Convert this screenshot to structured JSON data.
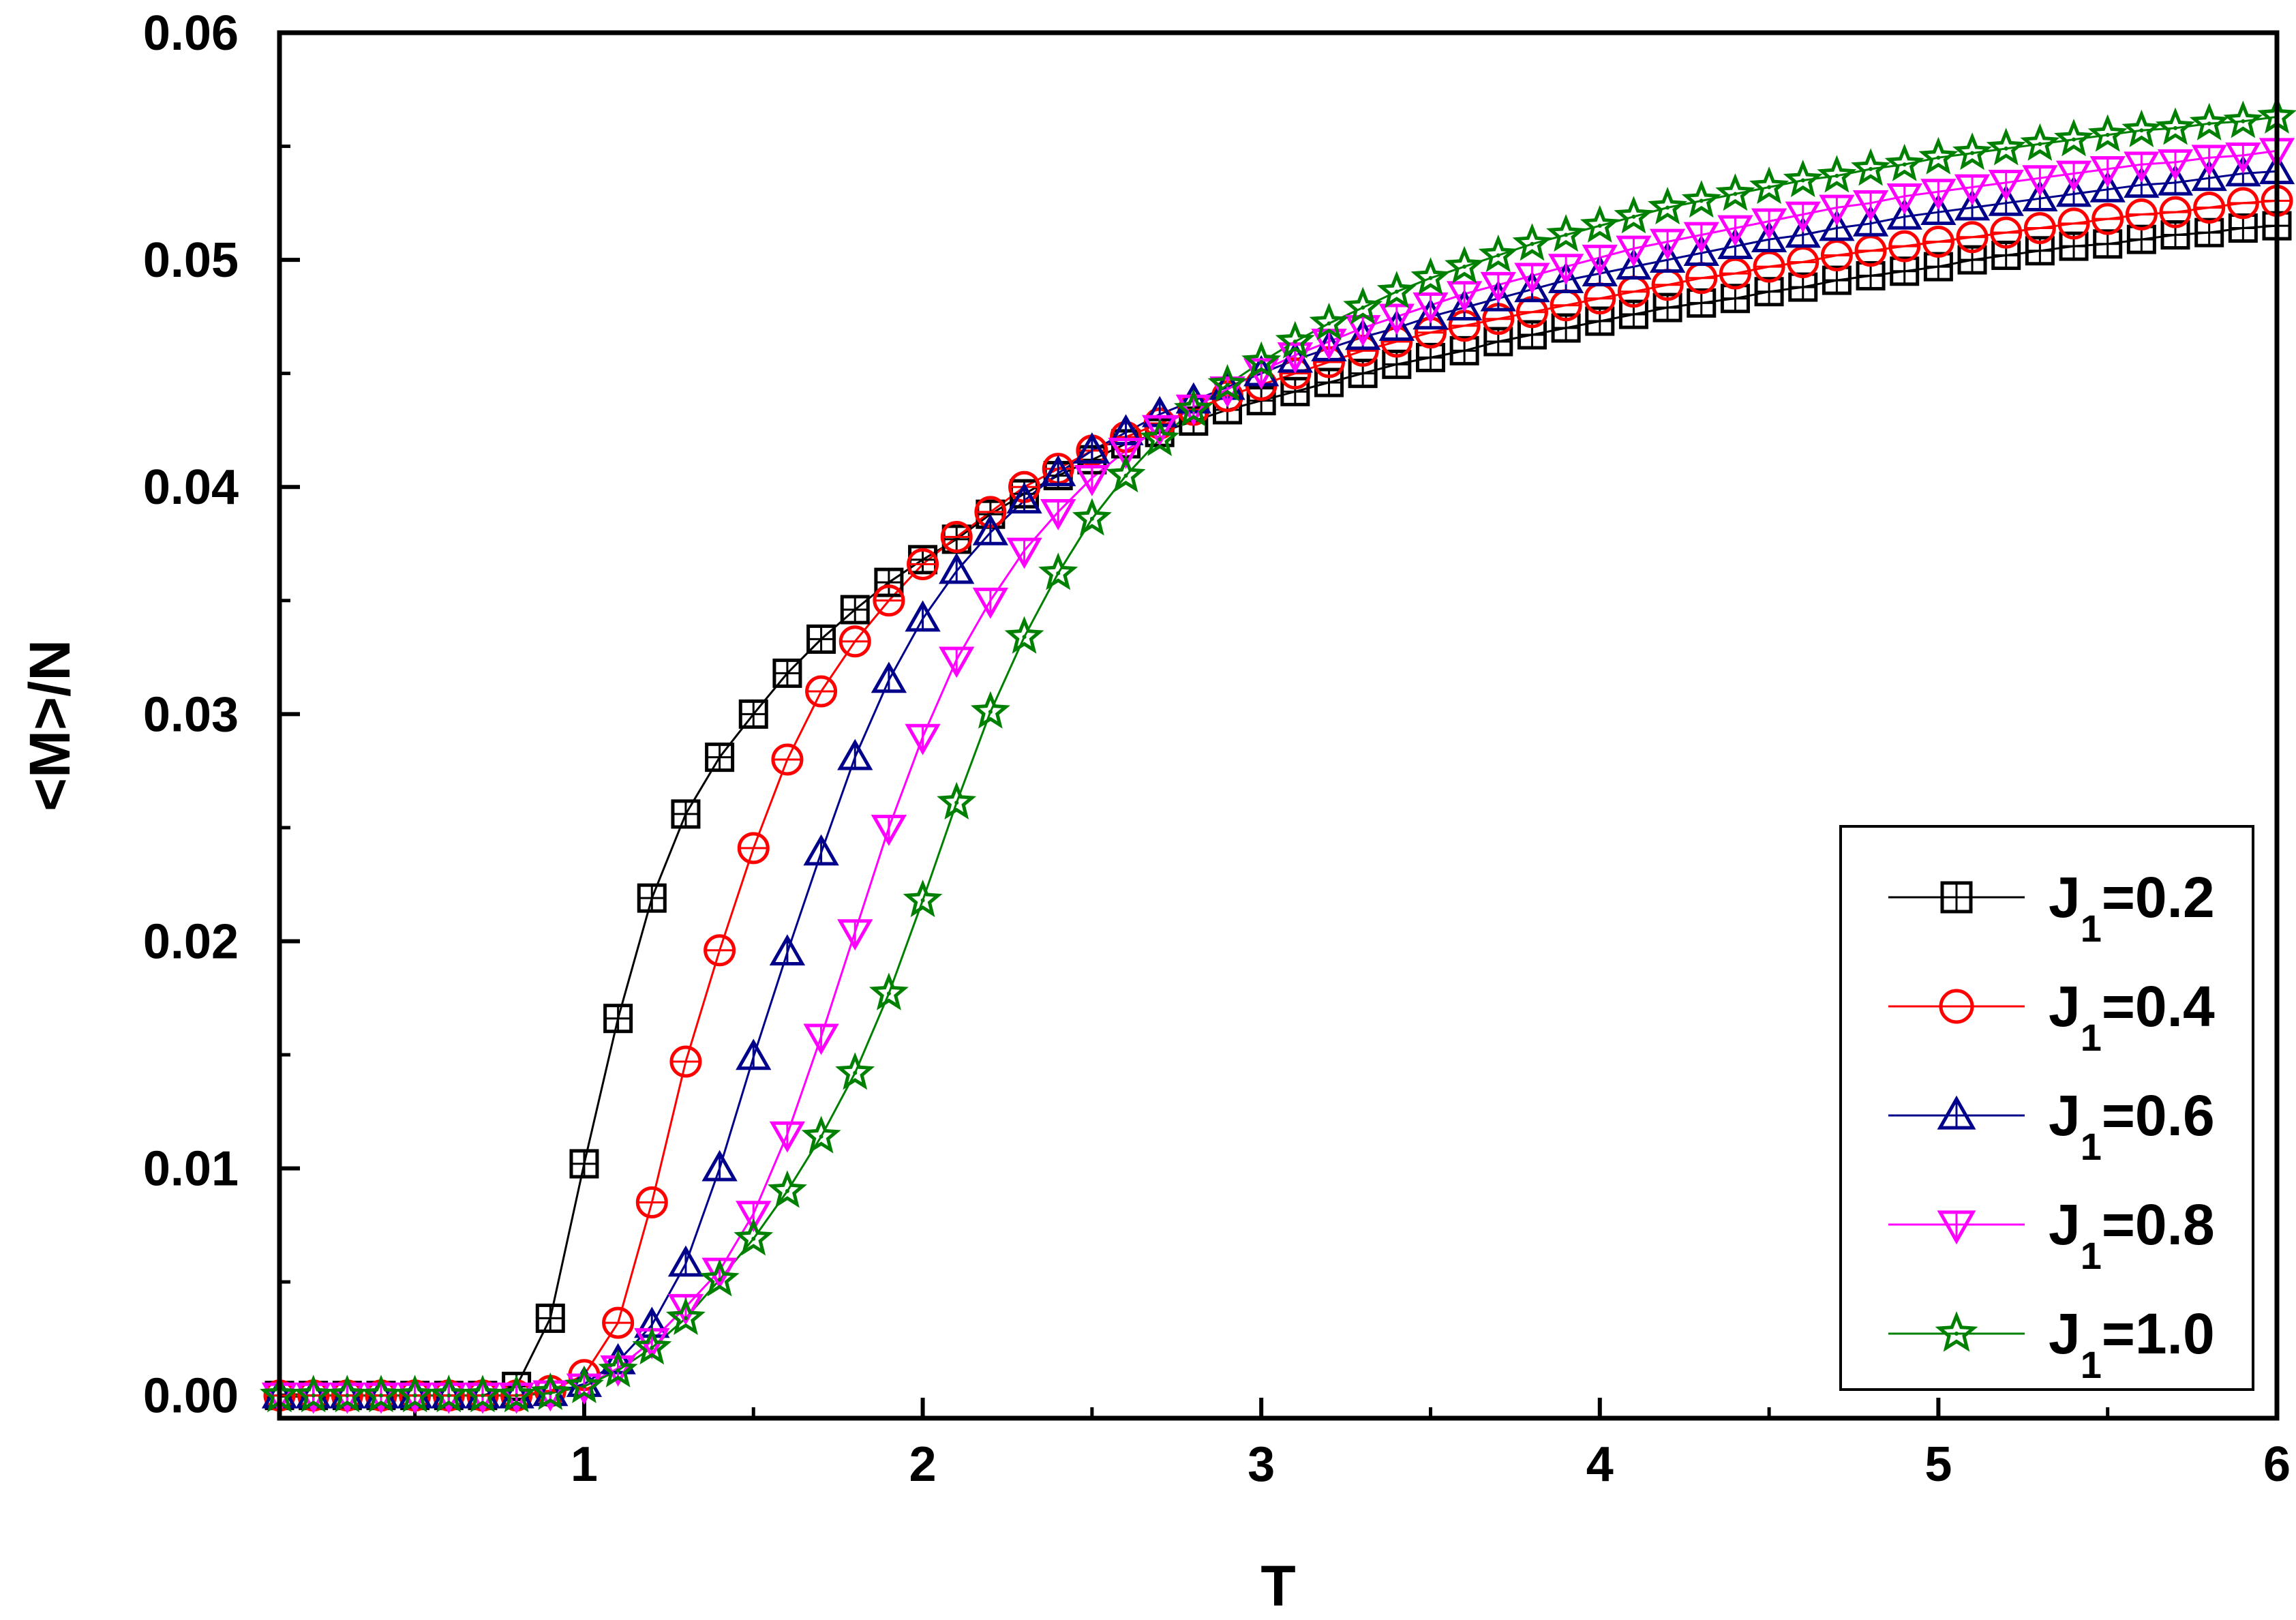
{
  "chart_data": {
    "type": "line",
    "title": "",
    "xlabel": "T",
    "ylabel": "<M>/N",
    "xlim": [
      0.1,
      6.0
    ],
    "ylim": [
      -0.001,
      0.06
    ],
    "xticks": [
      1,
      2,
      3,
      4,
      5,
      6
    ],
    "yticks": [
      0.0,
      0.01,
      0.02,
      0.03,
      0.04,
      0.05,
      0.06
    ],
    "ytick_labels": [
      "0.00",
      "0.01",
      "0.02",
      "0.03",
      "0.04",
      "0.05",
      "0.06"
    ],
    "grid": false,
    "legend_position": "bottom-right",
    "x": [
      0.1,
      0.2,
      0.3,
      0.4,
      0.5,
      0.6,
      0.7,
      0.8,
      0.9,
      1.0,
      1.1,
      1.2,
      1.3,
      1.4,
      1.5,
      1.6,
      1.7,
      1.8,
      1.9,
      2.0,
      2.1,
      2.2,
      2.3,
      2.4,
      2.5,
      2.6,
      2.7,
      2.8,
      2.9,
      3.0,
      3.1,
      3.2,
      3.3,
      3.4,
      3.5,
      3.6,
      3.7,
      3.8,
      3.9,
      4.0,
      4.1,
      4.2,
      4.3,
      4.4,
      4.5,
      4.6,
      4.7,
      4.8,
      4.9,
      5.0,
      5.1,
      5.2,
      5.3,
      5.4,
      5.5,
      5.6,
      5.7,
      5.8,
      5.9,
      6.0
    ],
    "series": [
      {
        "name": "J1=0.2",
        "label_main": "J",
        "label_sub": "1",
        "label_value": "=0.2",
        "color": "#000000",
        "marker": "square",
        "values": [
          0,
          0,
          0,
          0,
          0,
          0,
          0,
          0.0004,
          0.0034,
          0.0102,
          0.0166,
          0.0219,
          0.0256,
          0.0281,
          0.03,
          0.0318,
          0.0333,
          0.0346,
          0.0358,
          0.0368,
          0.0377,
          0.0388,
          0.0397,
          0.0405,
          0.0412,
          0.0419,
          0.0424,
          0.0429,
          0.0434,
          0.0438,
          0.0442,
          0.0446,
          0.045,
          0.0454,
          0.0457,
          0.046,
          0.0464,
          0.0467,
          0.047,
          0.0473,
          0.0476,
          0.0479,
          0.0481,
          0.0483,
          0.0486,
          0.0488,
          0.0491,
          0.0493,
          0.0495,
          0.0497,
          0.05,
          0.0502,
          0.0504,
          0.0506,
          0.0507,
          0.0509,
          0.0511,
          0.0512,
          0.0514,
          0.0515
        ]
      },
      {
        "name": "J1=0.4",
        "label_main": "J",
        "label_sub": "1",
        "label_value": "=0.4",
        "color": "#ff0000",
        "marker": "circle",
        "values": [
          0,
          0,
          0,
          0,
          0,
          0,
          0,
          0,
          0.0002,
          0.0009,
          0.0032,
          0.0085,
          0.0147,
          0.0196,
          0.0241,
          0.028,
          0.031,
          0.0332,
          0.035,
          0.0366,
          0.0378,
          0.0389,
          0.04,
          0.0408,
          0.0416,
          0.0422,
          0.0428,
          0.0434,
          0.044,
          0.0445,
          0.045,
          0.0455,
          0.046,
          0.0464,
          0.0468,
          0.0471,
          0.0474,
          0.0477,
          0.048,
          0.0483,
          0.0486,
          0.0489,
          0.0492,
          0.0494,
          0.0497,
          0.0499,
          0.0502,
          0.0504,
          0.0506,
          0.0508,
          0.051,
          0.0512,
          0.0514,
          0.0516,
          0.0518,
          0.052,
          0.0521,
          0.0523,
          0.0525,
          0.0526
        ]
      },
      {
        "name": "J1=0.6",
        "label_main": "J",
        "label_sub": "1",
        "label_value": "=0.6",
        "color": "#00008b",
        "marker": "triangle-up",
        "values": [
          0,
          0,
          0,
          0,
          0,
          0,
          0,
          0,
          0.0001,
          0.0005,
          0.0015,
          0.0031,
          0.0058,
          0.01,
          0.0149,
          0.0195,
          0.0239,
          0.0281,
          0.0315,
          0.0342,
          0.0363,
          0.038,
          0.0394,
          0.0406,
          0.0416,
          0.0424,
          0.0432,
          0.0438,
          0.0444,
          0.045,
          0.0456,
          0.0461,
          0.0466,
          0.047,
          0.0475,
          0.0479,
          0.0483,
          0.0487,
          0.0491,
          0.0494,
          0.0497,
          0.05,
          0.0503,
          0.0506,
          0.0509,
          0.0511,
          0.0514,
          0.0516,
          0.0519,
          0.0521,
          0.0523,
          0.0525,
          0.0527,
          0.0529,
          0.0531,
          0.0533,
          0.0534,
          0.0536,
          0.0538,
          0.0539
        ]
      },
      {
        "name": "J1=0.8",
        "label_main": "J",
        "label_sub": "1",
        "label_value": "=0.8",
        "color": "#ff00ff",
        "marker": "triangle-down",
        "values": [
          0,
          0,
          0,
          0,
          0,
          0,
          0,
          0,
          0.0001,
          0.0004,
          0.0012,
          0.0024,
          0.0039,
          0.0055,
          0.008,
          0.0115,
          0.0158,
          0.0204,
          0.025,
          0.029,
          0.0324,
          0.035,
          0.0372,
          0.0389,
          0.0404,
          0.0416,
          0.0426,
          0.0435,
          0.0443,
          0.0451,
          0.0458,
          0.0464,
          0.047,
          0.0475,
          0.048,
          0.0485,
          0.0489,
          0.0493,
          0.0497,
          0.0501,
          0.0505,
          0.0508,
          0.0511,
          0.0514,
          0.0517,
          0.052,
          0.0523,
          0.0525,
          0.0528,
          0.053,
          0.0532,
          0.0534,
          0.0536,
          0.0538,
          0.054,
          0.0542,
          0.0543,
          0.0545,
          0.0546,
          0.0548
        ]
      },
      {
        "name": "J1=1.0",
        "label_main": "J",
        "label_sub": "1",
        "label_value": "=1.0",
        "color": "#008000",
        "marker": "star",
        "values": [
          0,
          0,
          0,
          0,
          0,
          0,
          0,
          0,
          0.0001,
          0.0004,
          0.0011,
          0.0021,
          0.0034,
          0.0051,
          0.0069,
          0.009,
          0.0114,
          0.0142,
          0.0177,
          0.0218,
          0.0261,
          0.0301,
          0.0334,
          0.0362,
          0.0386,
          0.0405,
          0.0421,
          0.0434,
          0.0445,
          0.0455,
          0.0464,
          0.0472,
          0.0479,
          0.0486,
          0.0492,
          0.0497,
          0.0502,
          0.0507,
          0.0511,
          0.0515,
          0.0519,
          0.0523,
          0.0526,
          0.0529,
          0.0532,
          0.0535,
          0.0537,
          0.054,
          0.0542,
          0.0545,
          0.0547,
          0.0549,
          0.0551,
          0.0553,
          0.0555,
          0.0557,
          0.0558,
          0.056,
          0.0561,
          0.0563
        ]
      }
    ]
  }
}
